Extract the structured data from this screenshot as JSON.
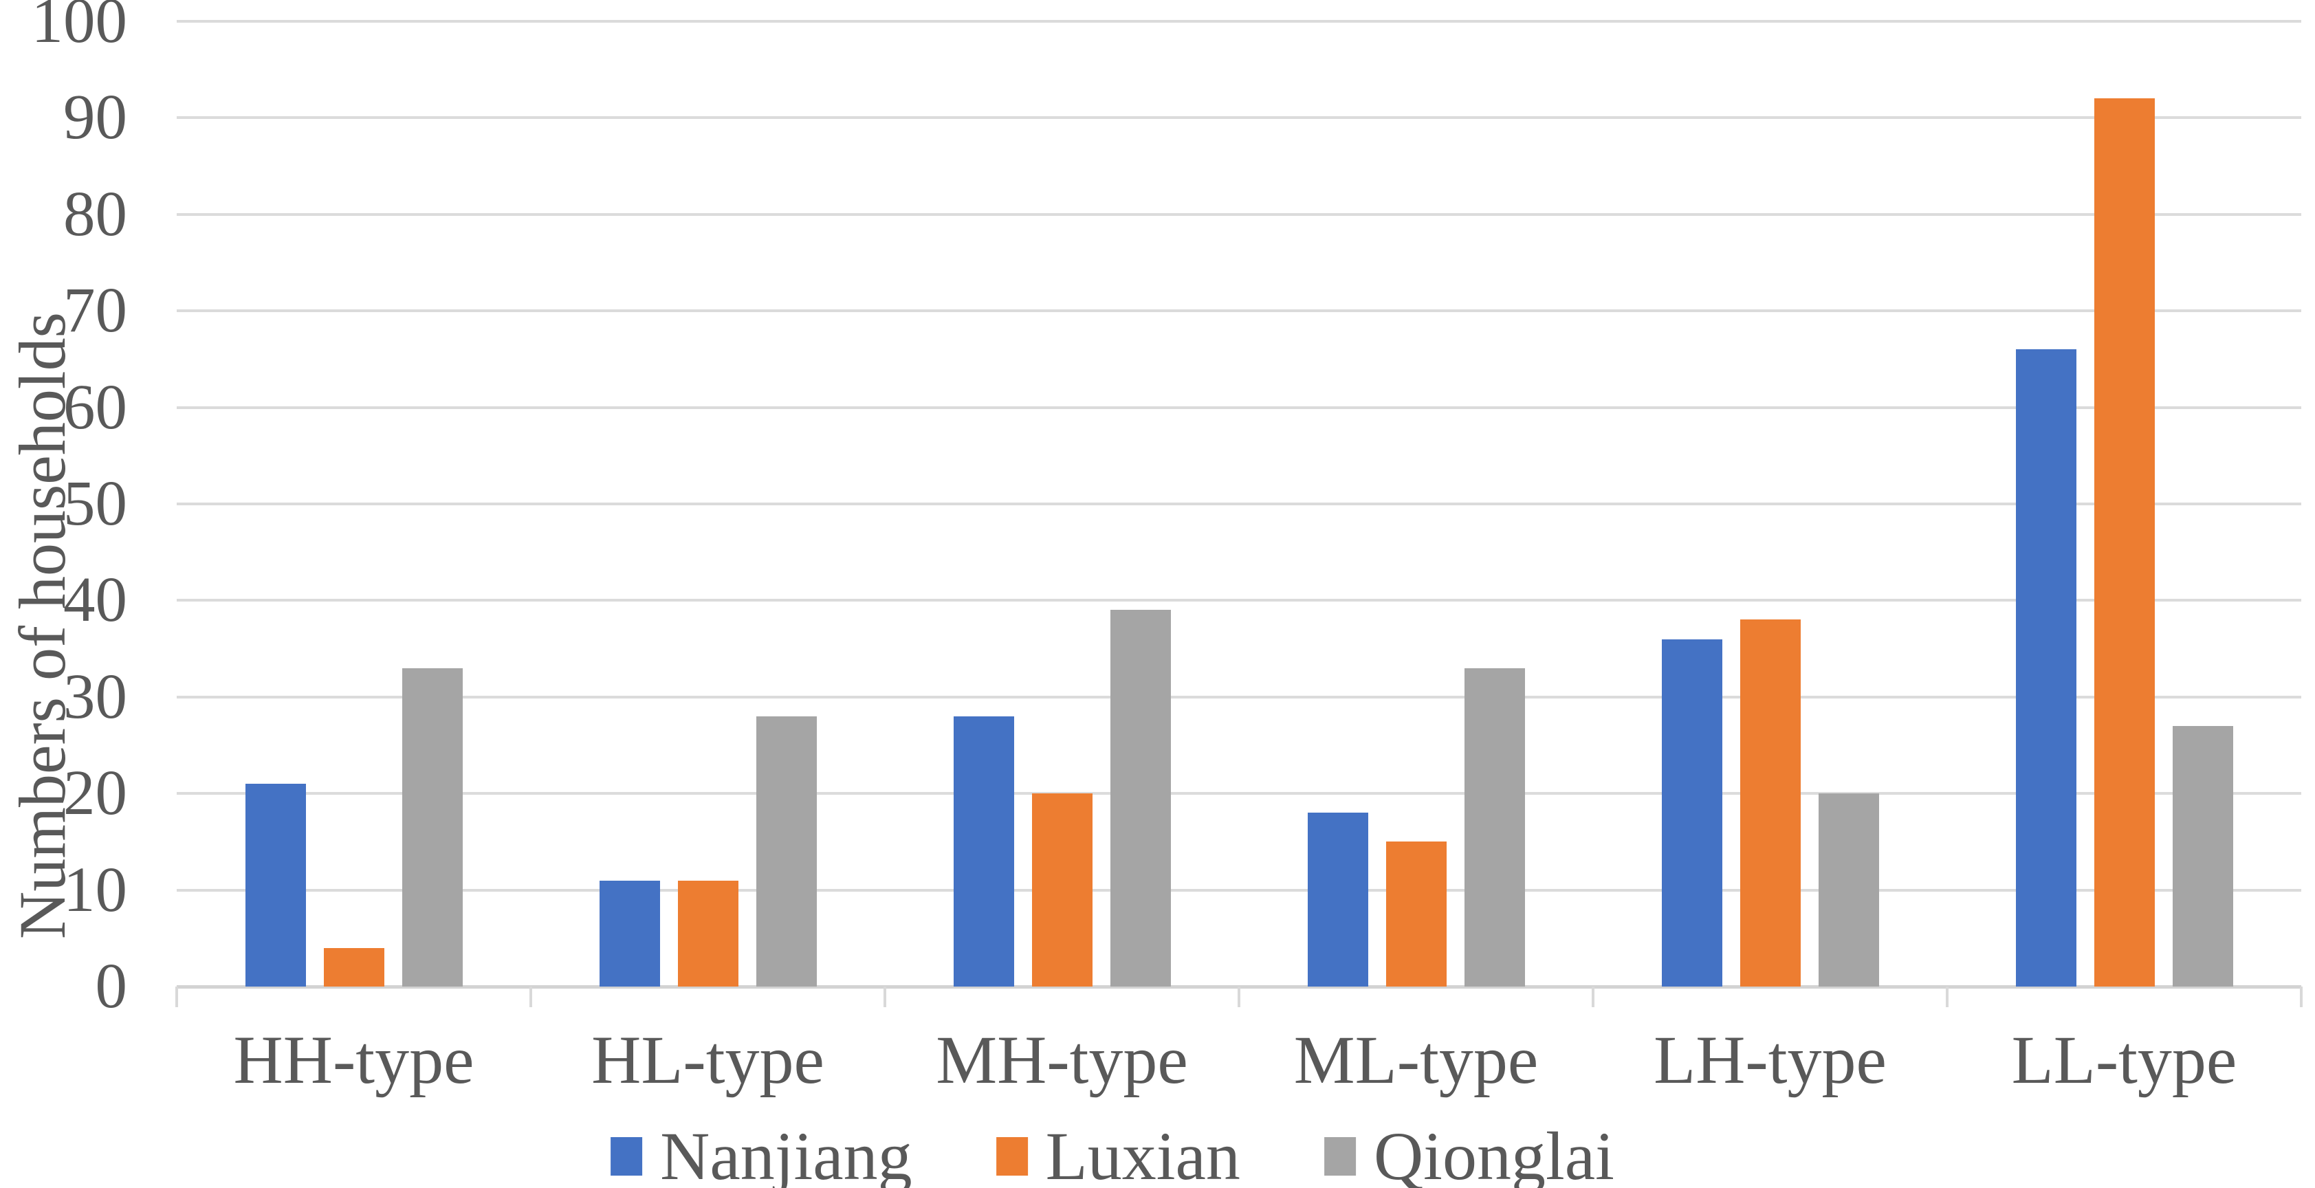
{
  "chart_data": {
    "type": "bar",
    "title": "",
    "xlabel": "",
    "ylabel": "Numbers of households",
    "ylim": [
      0,
      100
    ],
    "ytick_step": 10,
    "yticks": [
      "0",
      "10",
      "20",
      "30",
      "40",
      "50",
      "60",
      "70",
      "80",
      "90",
      "100"
    ],
    "grid": true,
    "legend_position": "bottom",
    "categories": [
      "HH-type",
      "HL-type",
      "MH-type",
      "ML-type",
      "LH-type",
      "LL-type"
    ],
    "series": [
      {
        "name": "Nanjiang",
        "color": "#4472C4",
        "values": [
          21,
          11,
          28,
          18,
          36,
          66
        ]
      },
      {
        "name": "Luxian",
        "color": "#ED7D31",
        "values": [
          4,
          11,
          20,
          15,
          38,
          92
        ]
      },
      {
        "name": "Qionglai",
        "color": "#A5A5A5",
        "values": [
          33,
          28,
          39,
          33,
          20,
          27
        ]
      }
    ],
    "colors": {
      "text": "#595959",
      "gridline": "#DBDBDB",
      "axis_line": "#D3D3D3"
    }
  }
}
